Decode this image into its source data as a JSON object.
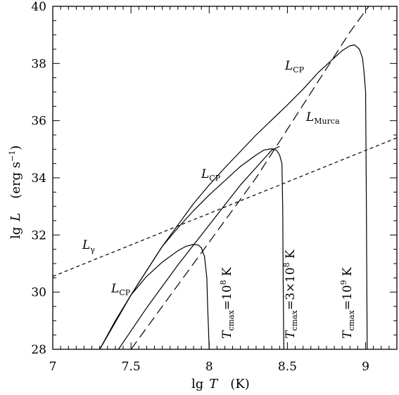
{
  "chart_data": {
    "type": "line",
    "title": "",
    "xlabel_main": "lg",
    "xlabel_var": "T",
    "xlabel_unit": "(K)",
    "ylabel_main": "lg",
    "ylabel_var": "L",
    "ylabel_unit": "(erg s",
    "ylabel_unit_exp": "−1",
    "ylabel_unit_close": ")",
    "xlim": [
      7.0,
      9.2
    ],
    "ylim": [
      28,
      40
    ],
    "x_ticks": [
      "7",
      "7.5",
      "8",
      "8.5",
      "9"
    ],
    "y_ticks": [
      "28",
      "30",
      "32",
      "34",
      "36",
      "38",
      "40"
    ],
    "grid": false,
    "series": [
      {
        "style": "solid",
        "curve": "L_CP",
        "x": [
          7.3,
          7.4,
          7.5,
          7.6,
          7.7,
          7.8,
          7.85,
          7.9,
          7.93,
          7.95,
          7.97,
          7.985,
          7.99,
          7.995,
          8.0
        ],
        "y": [
          28.0,
          29.0,
          29.9,
          30.55,
          31.05,
          31.45,
          31.6,
          31.67,
          31.65,
          31.55,
          31.25,
          30.5,
          29.5,
          28.8,
          28.0
        ]
      },
      {
        "style": "solid",
        "curve": "L_CP",
        "x": [
          7.3,
          7.5,
          7.7,
          7.8,
          7.9,
          8.0,
          8.1,
          8.2,
          8.3,
          8.35,
          8.4,
          8.43,
          8.45,
          8.465,
          8.47,
          8.473,
          8.477
        ],
        "y": [
          28.0,
          29.9,
          31.6,
          32.25,
          32.85,
          33.4,
          33.9,
          34.4,
          34.8,
          34.97,
          35.02,
          34.97,
          34.8,
          34.5,
          33.0,
          30.5,
          28.0
        ]
      },
      {
        "style": "solid",
        "curve": "L_CP",
        "x": [
          7.3,
          7.5,
          7.7,
          7.9,
          8.0,
          8.1,
          8.3,
          8.5,
          8.6,
          8.7,
          8.8,
          8.85,
          8.9,
          8.93,
          8.96,
          8.98,
          8.99,
          9.0,
          9.005,
          9.01
        ],
        "y": [
          28.0,
          29.9,
          31.6,
          33.1,
          33.75,
          34.35,
          35.5,
          36.55,
          37.1,
          37.7,
          38.2,
          38.45,
          38.62,
          38.65,
          38.5,
          38.2,
          37.7,
          37.0,
          33.0,
          28.0
        ]
      },
      {
        "style": "solid",
        "curve": "Murca",
        "x": [
          7.42,
          7.6,
          7.8,
          8.0,
          8.2,
          8.4,
          8.45
        ],
        "y": [
          28.0,
          29.45,
          30.95,
          32.35,
          33.75,
          34.97,
          35.1
        ]
      },
      {
        "style": "long-dash",
        "curve": "L_Murca",
        "x": [
          7.5,
          7.7,
          7.9,
          8.1,
          8.3,
          8.5,
          8.7,
          8.9,
          9.02
        ],
        "y": [
          28.0,
          29.5,
          31.0,
          32.5,
          34.0,
          35.7,
          37.4,
          39.1,
          40.0
        ]
      },
      {
        "style": "short-dash",
        "curve": "L_gamma",
        "x": [
          7.0,
          9.2
        ],
        "y": [
          30.55,
          35.4
        ]
      }
    ],
    "annotations": [
      {
        "id": "lcp-top",
        "main": "L",
        "sub": "CP"
      },
      {
        "id": "lcp-mid",
        "main": "L",
        "sub": "CP"
      },
      {
        "id": "lcp-low",
        "main": "L",
        "sub": "CP"
      },
      {
        "id": "lmurca",
        "main": "L",
        "sub": "Murca"
      },
      {
        "id": "lgamma",
        "main": "L",
        "sub": "γ"
      },
      {
        "id": "tmax-1",
        "main": "T",
        "sub": "cmax",
        "value": "=10",
        "exp": "8",
        "unit": " K"
      },
      {
        "id": "tmax-2",
        "main": "T",
        "sub": "cmax",
        "value": "=3×10",
        "exp": "8",
        "unit": " K"
      },
      {
        "id": "tmax-3",
        "main": "T",
        "sub": "cmax",
        "value": "=10",
        "exp": "9",
        "unit": " K"
      }
    ]
  }
}
